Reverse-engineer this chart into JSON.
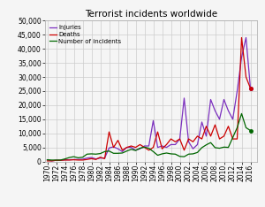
{
  "title": "Terrorist incidents worldwide",
  "years": [
    1970,
    1971,
    1972,
    1973,
    1974,
    1975,
    1976,
    1977,
    1978,
    1979,
    1980,
    1981,
    1982,
    1983,
    1984,
    1985,
    1986,
    1987,
    1988,
    1989,
    1990,
    1991,
    1992,
    1993,
    1994,
    1995,
    1996,
    1997,
    1998,
    1999,
    2000,
    2001,
    2002,
    2003,
    2004,
    2005,
    2006,
    2007,
    2008,
    2009,
    2010,
    2011,
    2012,
    2013,
    2014,
    2015,
    2016
  ],
  "injuries": [
    600,
    200,
    400,
    400,
    600,
    600,
    700,
    700,
    800,
    1200,
    1400,
    900,
    1200,
    1200,
    4800,
    5200,
    4500,
    3500,
    5000,
    5000,
    4000,
    4500,
    5500,
    5500,
    14500,
    5000,
    5500,
    5000,
    6000,
    6000,
    8000,
    22500,
    7000,
    4500,
    6000,
    14000,
    9000,
    22000,
    18000,
    15000,
    22000,
    18000,
    15000,
    25000,
    37000,
    44000,
    26000
  ],
  "deaths": [
    200,
    200,
    400,
    400,
    500,
    500,
    600,
    500,
    500,
    700,
    1000,
    700,
    1500,
    1000,
    10500,
    5000,
    7500,
    4000,
    5000,
    5500,
    5000,
    6000,
    5000,
    4000,
    5000,
    10500,
    4500,
    6000,
    8000,
    7000,
    8000,
    4000,
    8000,
    7000,
    9000,
    8000,
    12500,
    9000,
    13000,
    8000,
    9000,
    12500,
    8000,
    8000,
    44000,
    30000,
    26000
  ],
  "incidents": [
    600,
    500,
    500,
    500,
    900,
    1400,
    1700,
    1300,
    1500,
    2600,
    2700,
    2600,
    2800,
    3500,
    3700,
    2900,
    2900,
    3000,
    3700,
    4300,
    3900,
    4700,
    5100,
    4700,
    3500,
    2200,
    2700,
    3000,
    2700,
    2600,
    1800,
    1700,
    2600,
    2700,
    3200,
    4900,
    5900,
    6700,
    4900,
    4700,
    5100,
    5000,
    8500,
    12000,
    17000,
    12000,
    11000
  ],
  "injuries_color": "#7b2fbe",
  "deaths_color": "#cc0000",
  "incidents_color": "#006600",
  "bg_color": "#f5f5f5",
  "grid_color": "#cccccc",
  "ylim": [
    0,
    50000
  ],
  "yticks": [
    0,
    5000,
    10000,
    15000,
    20000,
    25000,
    30000,
    35000,
    40000,
    45000,
    50000
  ],
  "xlim_left": 1969.5,
  "xlim_right": 2017.5
}
